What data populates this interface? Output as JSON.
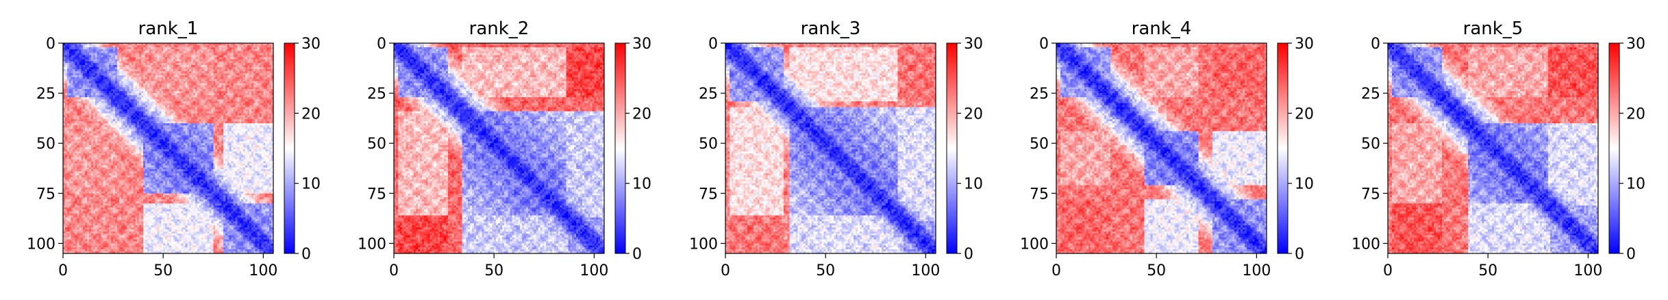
{
  "chart_data": [
    {
      "type": "heatmap",
      "title": "rank_1",
      "xlim": [
        0,
        105
      ],
      "ylim": [
        105,
        0
      ],
      "xticks": [
        "0",
        "50",
        "100"
      ],
      "yticks": [
        "0",
        "25",
        "50",
        "75",
        "100"
      ],
      "colorbar": {
        "min": 0,
        "max": 30,
        "ticks": [
          "0",
          "10",
          "20",
          "30"
        ],
        "colormap": "bwr"
      },
      "domains": [
        {
          "range": [
            2,
            26
          ],
          "dist": 7
        },
        {
          "range": [
            40,
            74
          ],
          "dist": 6
        },
        {
          "range": [
            80,
            104
          ],
          "dist": 7
        }
      ],
      "pairs": [
        {
          "a": [
            2,
            26
          ],
          "b": [
            40,
            74
          ],
          "dist": 21
        },
        {
          "a": [
            40,
            74
          ],
          "b": [
            80,
            104
          ],
          "dist": 14
        },
        {
          "a": [
            2,
            26
          ],
          "b": [
            80,
            104
          ],
          "dist": 22
        }
      ],
      "background": 22
    },
    {
      "type": "heatmap",
      "title": "rank_2",
      "xlim": [
        0,
        105
      ],
      "ylim": [
        105,
        0
      ],
      "xticks": [
        "0",
        "50",
        "100"
      ],
      "yticks": [
        "0",
        "25",
        "50",
        "75",
        "100"
      ],
      "colorbar": {
        "min": 0,
        "max": 30,
        "ticks": [
          "0",
          "10",
          "20",
          "30"
        ],
        "colormap": "bwr"
      },
      "domains": [
        {
          "range": [
            2,
            26
          ],
          "dist": 7
        },
        {
          "range": [
            34,
            86
          ],
          "dist": 6
        },
        {
          "range": [
            86,
            104
          ],
          "dist": 8
        }
      ],
      "pairs": [
        {
          "a": [
            2,
            26
          ],
          "b": [
            34,
            86
          ],
          "dist": 19
        },
        {
          "a": [
            34,
            86
          ],
          "b": [
            86,
            104
          ],
          "dist": 12
        },
        {
          "a": [
            2,
            26
          ],
          "b": [
            86,
            104
          ],
          "dist": 26
        }
      ],
      "background": 24
    },
    {
      "type": "heatmap",
      "title": "rank_3",
      "xlim": [
        0,
        105
      ],
      "ylim": [
        105,
        0
      ],
      "xticks": [
        "0",
        "50",
        "100"
      ],
      "yticks": [
        "0",
        "25",
        "50",
        "75",
        "100"
      ],
      "colorbar": {
        "min": 0,
        "max": 30,
        "ticks": [
          "0",
          "10",
          "20",
          "30"
        ],
        "colormap": "bwr"
      },
      "domains": [
        {
          "range": [
            2,
            28
          ],
          "dist": 7
        },
        {
          "range": [
            32,
            88
          ],
          "dist": 6
        },
        {
          "range": [
            86,
            104
          ],
          "dist": 8
        }
      ],
      "pairs": [
        {
          "a": [
            2,
            28
          ],
          "b": [
            32,
            88
          ],
          "dist": 17
        },
        {
          "a": [
            32,
            88
          ],
          "b": [
            86,
            104
          ],
          "dist": 13
        },
        {
          "a": [
            2,
            28
          ],
          "b": [
            86,
            104
          ],
          "dist": 23
        }
      ],
      "background": 22
    },
    {
      "type": "heatmap",
      "title": "rank_4",
      "xlim": [
        0,
        105
      ],
      "ylim": [
        105,
        0
      ],
      "xticks": [
        "0",
        "50",
        "100"
      ],
      "yticks": [
        "0",
        "25",
        "50",
        "75",
        "100"
      ],
      "colorbar": {
        "min": 0,
        "max": 30,
        "ticks": [
          "0",
          "10",
          "20",
          "30"
        ],
        "colormap": "bwr"
      },
      "domains": [
        {
          "range": [
            2,
            26
          ],
          "dist": 7
        },
        {
          "range": [
            44,
            70
          ],
          "dist": 6
        },
        {
          "range": [
            78,
            104
          ],
          "dist": 7
        }
      ],
      "pairs": [
        {
          "a": [
            2,
            26
          ],
          "b": [
            44,
            70
          ],
          "dist": 20
        },
        {
          "a": [
            44,
            70
          ],
          "b": [
            78,
            104
          ],
          "dist": 14
        },
        {
          "a": [
            2,
            26
          ],
          "b": [
            78,
            104
          ],
          "dist": 24
        }
      ],
      "background": 23
    },
    {
      "type": "heatmap",
      "title": "rank_5",
      "xlim": [
        0,
        105
      ],
      "ylim": [
        105,
        0
      ],
      "xticks": [
        "0",
        "50",
        "100"
      ],
      "yticks": [
        "0",
        "25",
        "50",
        "75",
        "100"
      ],
      "colorbar": {
        "min": 0,
        "max": 30,
        "ticks": [
          "0",
          "10",
          "20",
          "30"
        ],
        "colormap": "bwr"
      },
      "domains": [
        {
          "range": [
            2,
            26
          ],
          "dist": 7
        },
        {
          "range": [
            40,
            80
          ],
          "dist": 6
        },
        {
          "range": [
            80,
            104
          ],
          "dist": 8
        }
      ],
      "pairs": [
        {
          "a": [
            2,
            26
          ],
          "b": [
            40,
            80
          ],
          "dist": 20
        },
        {
          "a": [
            40,
            80
          ],
          "b": [
            80,
            104
          ],
          "dist": 13
        },
        {
          "a": [
            2,
            26
          ],
          "b": [
            80,
            104
          ],
          "dist": 25
        }
      ],
      "background": 23
    }
  ]
}
